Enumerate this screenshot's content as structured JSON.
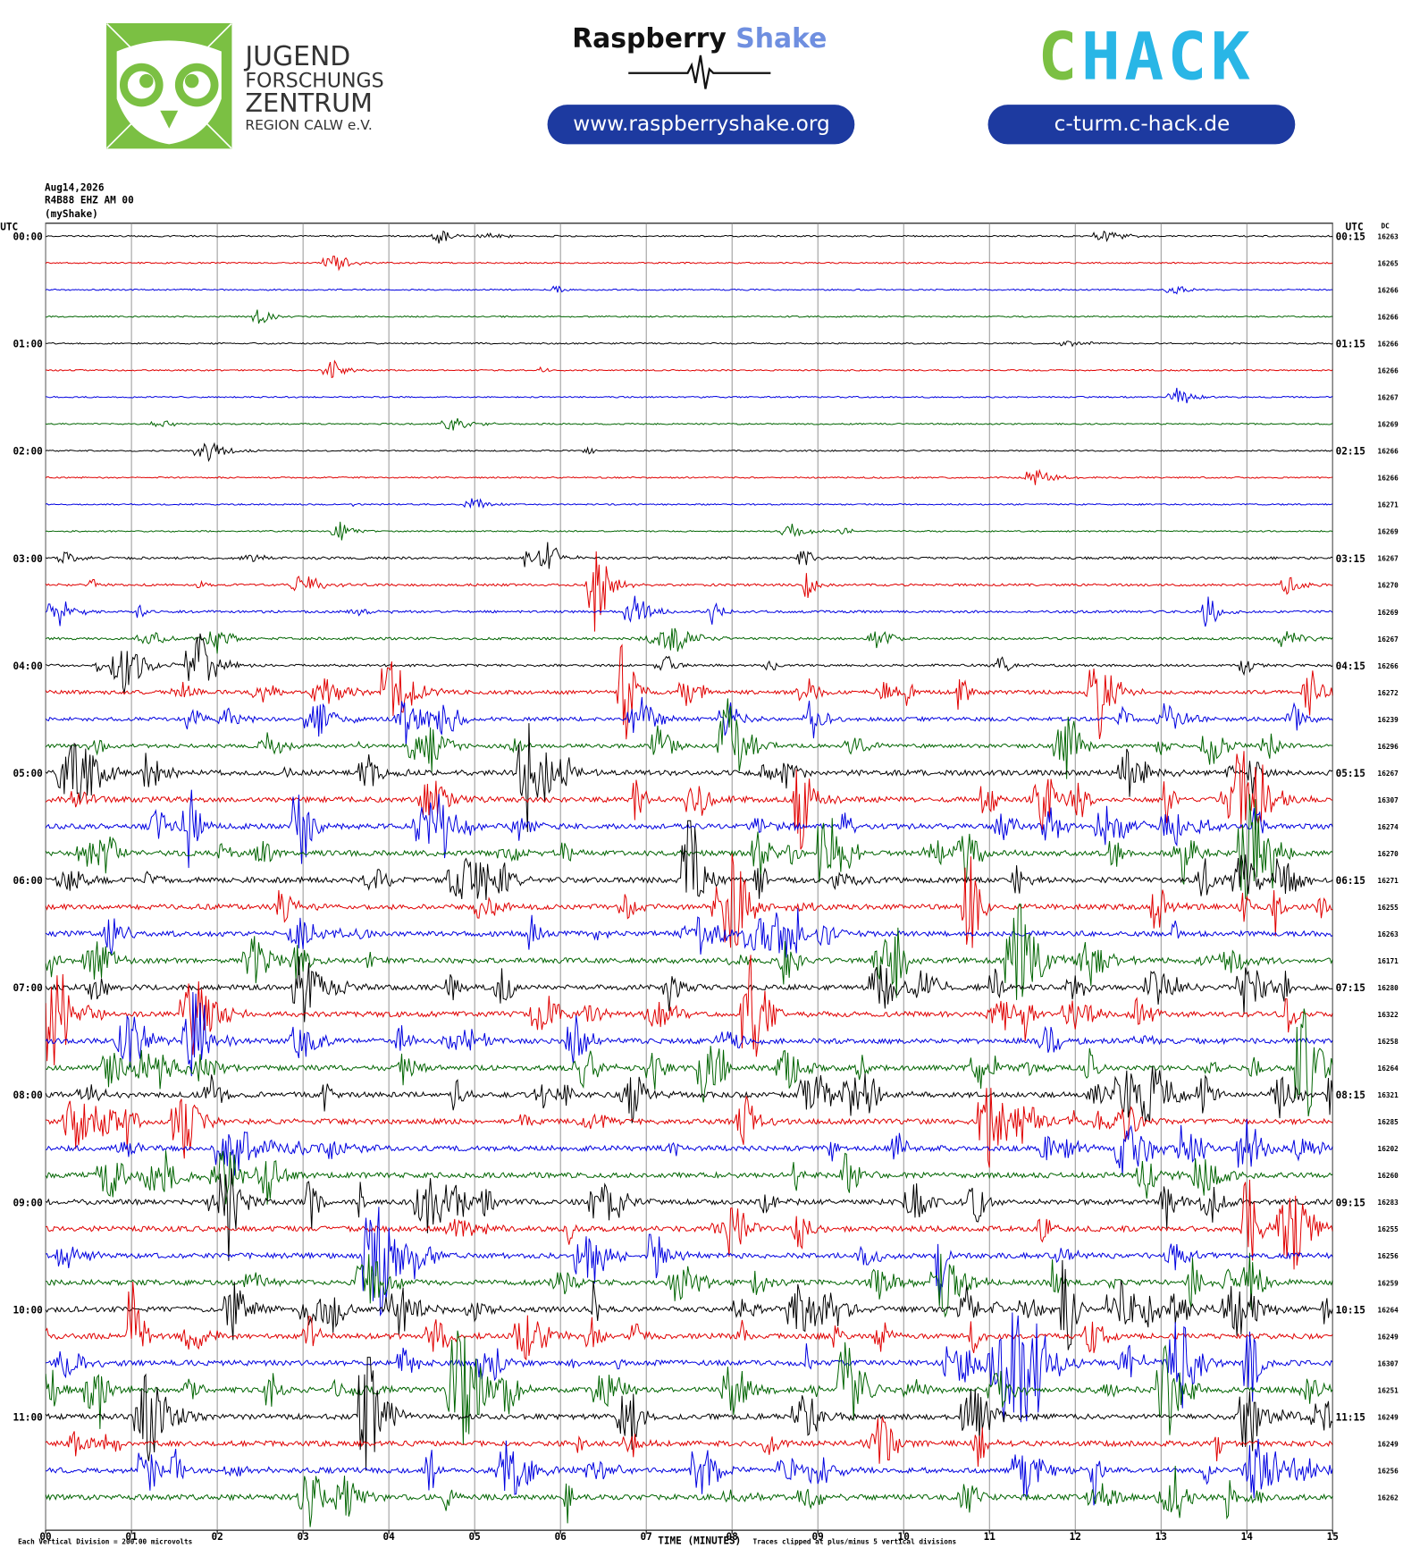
{
  "header": {
    "jfz_logo": [
      "JUGEND",
      "FORSCHUNGS",
      "ZENTRUM",
      "REGION CALW e.V."
    ],
    "rs_logo": {
      "first": "Raspberry",
      "second": "Shake"
    },
    "rs_url": "www.raspberryshake.org",
    "chack_logo": {
      "first": "C",
      "second": "HACK"
    },
    "chack_url": "c-turm.c-hack.de"
  },
  "chart_data": {
    "type": "helicorder",
    "date": "Aug14,2026",
    "station": "R4B88 EHZ AM 00",
    "network": "(myShake)",
    "left_axis_title": "UTC",
    "right_axis_title": "UTC",
    "dc_title": "DC",
    "row_labels_left": [
      "00:00",
      "01:00",
      "02:00",
      "03:00",
      "04:00",
      "05:00",
      "06:00",
      "07:00",
      "08:00",
      "09:00",
      "10:00",
      "11:00"
    ],
    "row_labels_right": [
      "00:15",
      "01:15",
      "02:15",
      "03:15",
      "04:15",
      "05:15",
      "06:15",
      "07:15",
      "08:15",
      "09:15",
      "10:15",
      "11:15"
    ],
    "dc": [
      16263,
      16265,
      16266,
      16266,
      16266,
      16266,
      16267,
      16269,
      16266,
      16266,
      16271,
      16269,
      16267,
      16270,
      16269,
      16267,
      16266,
      16272,
      16239,
      16296,
      16267,
      16307,
      16274,
      16270,
      16271,
      16255,
      16263,
      16171,
      16280,
      16322,
      16258,
      16264,
      16321,
      16285,
      16202,
      16260,
      16283,
      16255,
      16256,
      16259,
      16264,
      16249,
      16307,
      16251,
      16249,
      16249,
      16256,
      16262
    ],
    "colors": [
      "#000000",
      "#e00000",
      "#0000e0",
      "#006400"
    ],
    "xlim": [
      0,
      15
    ],
    "xticks": [
      {
        "value": 0,
        "label": "00"
      },
      {
        "value": 1,
        "label": "01"
      },
      {
        "value": 2,
        "label": "02"
      },
      {
        "value": 3,
        "label": "03"
      },
      {
        "value": 4,
        "label": "04"
      },
      {
        "value": 5,
        "label": "05"
      },
      {
        "value": 6,
        "label": "06"
      },
      {
        "value": 7,
        "label": "07"
      },
      {
        "value": 8,
        "label": "08"
      },
      {
        "value": 9,
        "label": "09"
      },
      {
        "value": 10,
        "label": "10"
      },
      {
        "value": 11,
        "label": "11"
      },
      {
        "value": 12,
        "label": "12"
      },
      {
        "value": 13,
        "label": "13"
      },
      {
        "value": 14,
        "label": "14"
      },
      {
        "value": 15,
        "label": "15"
      }
    ],
    "grid": true,
    "xlabel": "TIME (MINUTES)",
    "scale_note": "Each Vertical Division =  200.00 microvolts",
    "clip_note": "Traces clipped at plus/minus 5 vertical divisions"
  }
}
